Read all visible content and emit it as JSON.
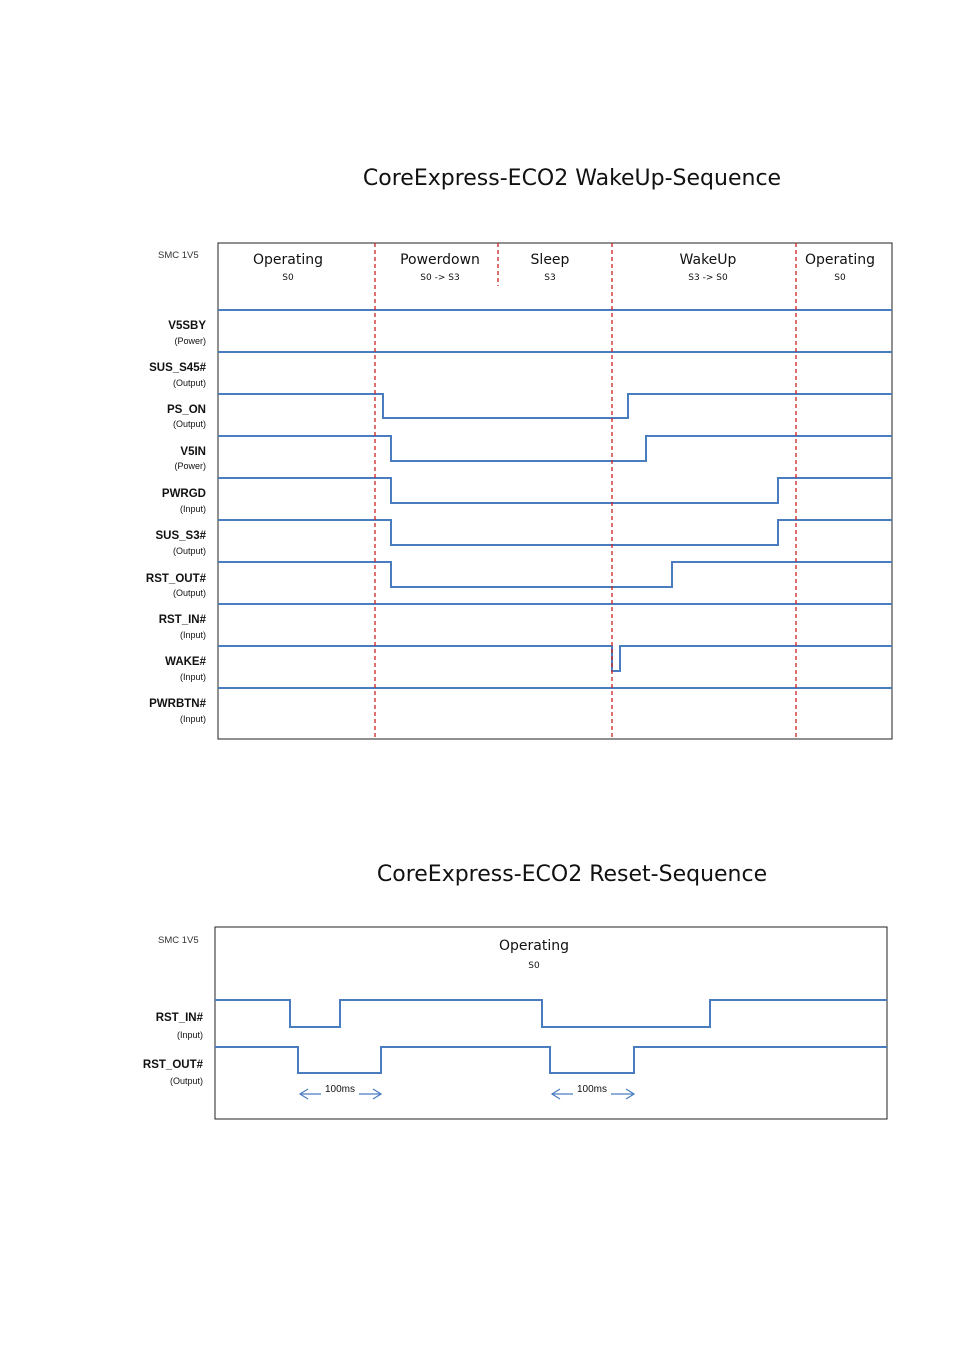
{
  "wakeup": {
    "title": "CoreExpress-ECO2  WakeUp-Sequence",
    "smc_label": "SMC 1V5",
    "phases": [
      {
        "name": "Operating",
        "state": "S0"
      },
      {
        "name": "Powerdown",
        "state": "S0 -> S3"
      },
      {
        "name": "Sleep",
        "state": "S3"
      },
      {
        "name": "WakeUp",
        "state": "S3 -> S0"
      },
      {
        "name": "Operating",
        "state": "S0"
      }
    ],
    "signals": [
      {
        "name": "V5SBY",
        "type": "(Power)"
      },
      {
        "name": "SUS_S45#",
        "type": "(Output)"
      },
      {
        "name": "PS_ON",
        "type": "(Output)"
      },
      {
        "name": "V5IN",
        "type": "(Power)"
      },
      {
        "name": "PWRGD",
        "type": "(Input)"
      },
      {
        "name": "SUS_S3#",
        "type": "(Output)"
      },
      {
        "name": "RST_OUT#",
        "type": "(Output)"
      },
      {
        "name": "RST_IN#",
        "type": "(Input)"
      },
      {
        "name": "WAKE#",
        "type": "(Input)"
      },
      {
        "name": "PWRBTN#",
        "type": "(Input)"
      }
    ]
  },
  "reset": {
    "title": "CoreExpress-ECO2  Reset-Sequence",
    "smc_label": "SMC 1V5",
    "phase": {
      "name": "Operating",
      "state": "S0"
    },
    "signals": [
      {
        "name": "RST_IN#",
        "type": "(Input)"
      },
      {
        "name": "RST_OUT#",
        "type": "(Output)"
      }
    ],
    "delay_labels": [
      "100ms",
      "100ms"
    ]
  },
  "colors": {
    "signal": "#4a7cc0",
    "marker": "#cc2222",
    "border": "#222222"
  }
}
